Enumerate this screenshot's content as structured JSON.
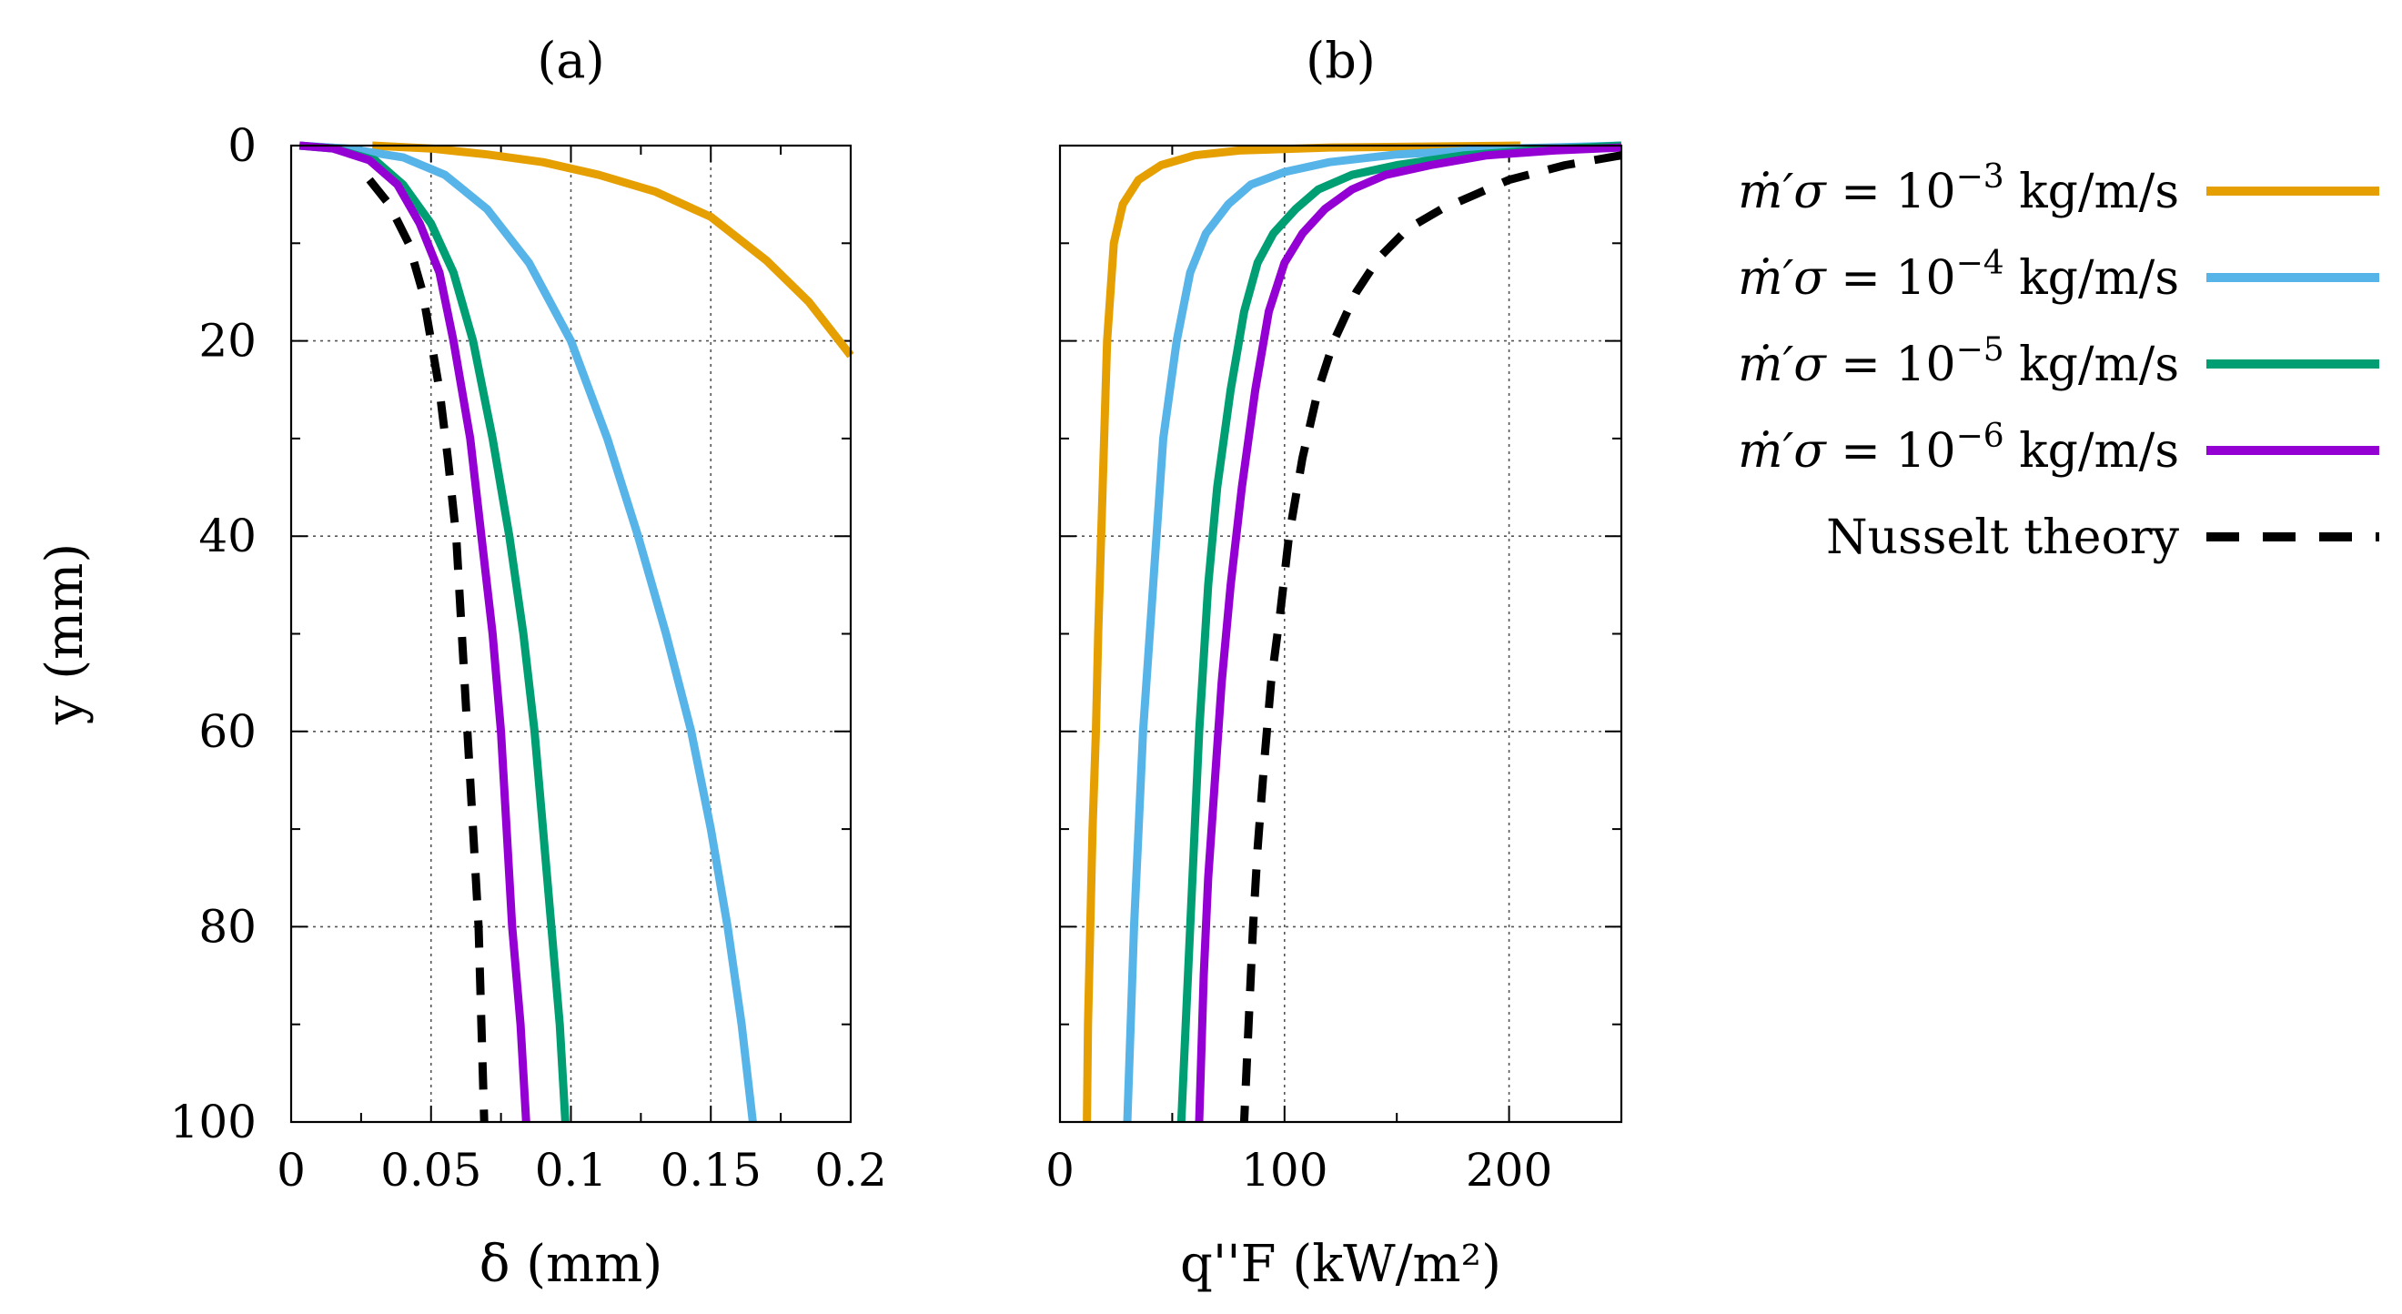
{
  "chart_data": [
    {
      "type": "line",
      "title": "(a)",
      "xlabel": "δ (mm)",
      "ylabel": "y (mm)",
      "xlim": [
        0,
        0.2
      ],
      "ylim": [
        0,
        100
      ],
      "y_inverted": true,
      "grid": true,
      "xticks": [
        0,
        0.05,
        0.1,
        0.15,
        0.2
      ],
      "xtick_labels": [
        "0",
        "0.05",
        "0.1",
        "0.15",
        "0.2"
      ],
      "yticks": [
        0,
        20,
        40,
        60,
        80,
        100
      ],
      "ytick_labels": [
        "0",
        "20",
        "40",
        "60",
        "80",
        "100"
      ],
      "series": [
        {
          "name": "m'σ = 10^-3 kg/m/s",
          "color": "#E69F00",
          "dash": "solid",
          "points": [
            [
              0.029,
              0.0
            ],
            [
              0.05,
              0.3
            ],
            [
              0.07,
              0.9
            ],
            [
              0.09,
              1.7
            ],
            [
              0.11,
              3.0
            ],
            [
              0.13,
              4.7
            ],
            [
              0.15,
              7.3
            ],
            [
              0.17,
              11.8
            ],
            [
              0.185,
              16.0
            ],
            [
              0.2,
              21.5
            ]
          ]
        },
        {
          "name": "m'σ = 10^-4 kg/m/s",
          "color": "#56B4E9",
          "dash": "solid",
          "points": [
            [
              0.003,
              0.0
            ],
            [
              0.02,
              0.3
            ],
            [
              0.04,
              1.2
            ],
            [
              0.055,
              3.0
            ],
            [
              0.07,
              6.5
            ],
            [
              0.085,
              12.0
            ],
            [
              0.1,
              20.0
            ],
            [
              0.113,
              30.0
            ],
            [
              0.124,
              40.0
            ],
            [
              0.134,
              50.0
            ],
            [
              0.143,
              60.0
            ],
            [
              0.15,
              70.0
            ],
            [
              0.156,
              80.0
            ],
            [
              0.161,
              90.0
            ],
            [
              0.165,
              100.0
            ]
          ]
        },
        {
          "name": "m'σ = 10^-5 kg/m/s",
          "color": "#009E73",
          "dash": "solid",
          "points": [
            [
              0.003,
              0.0
            ],
            [
              0.015,
              0.3
            ],
            [
              0.03,
              1.5
            ],
            [
              0.04,
              4.0
            ],
            [
              0.05,
              8.0
            ],
            [
              0.058,
              13.0
            ],
            [
              0.065,
              20.0
            ],
            [
              0.072,
              30.0
            ],
            [
              0.078,
              40.0
            ],
            [
              0.083,
              50.0
            ],
            [
              0.087,
              60.0
            ],
            [
              0.09,
              70.0
            ],
            [
              0.093,
              80.0
            ],
            [
              0.096,
              90.0
            ],
            [
              0.098,
              100.0
            ]
          ]
        },
        {
          "name": "m'σ = 10^-6 kg/m/s",
          "color": "#9400D3",
          "dash": "solid",
          "points": [
            [
              0.003,
              0.0
            ],
            [
              0.015,
              0.3
            ],
            [
              0.028,
              1.5
            ],
            [
              0.038,
              4.0
            ],
            [
              0.046,
              8.0
            ],
            [
              0.053,
              13.0
            ],
            [
              0.058,
              20.0
            ],
            [
              0.064,
              30.0
            ],
            [
              0.068,
              40.0
            ],
            [
              0.072,
              50.0
            ],
            [
              0.075,
              60.0
            ],
            [
              0.077,
              70.0
            ],
            [
              0.079,
              80.0
            ],
            [
              0.082,
              90.0
            ],
            [
              0.084,
              100.0
            ]
          ]
        },
        {
          "name": "Nusselt theory",
          "color": "#000000",
          "dash": "dashed",
          "points": [
            [
              0.028,
              3.5
            ],
            [
              0.035,
              6.0
            ],
            [
              0.042,
              10.0
            ],
            [
              0.047,
              15.0
            ],
            [
              0.05,
              20.0
            ],
            [
              0.053,
              25.0
            ],
            [
              0.056,
              32.0
            ],
            [
              0.059,
              40.0
            ],
            [
              0.061,
              50.0
            ],
            [
              0.063,
              60.0
            ],
            [
              0.065,
              70.0
            ],
            [
              0.067,
              80.0
            ],
            [
              0.068,
              90.0
            ],
            [
              0.069,
              100.0
            ]
          ]
        }
      ]
    },
    {
      "type": "line",
      "title": "(b)",
      "xlabel": "q''F (kW/m²)",
      "ylabel": "",
      "xlim": [
        0,
        250
      ],
      "ylim": [
        0,
        100
      ],
      "y_inverted": true,
      "grid": true,
      "xticks": [
        0,
        100,
        200
      ],
      "xtick_labels": [
        "0",
        "100",
        "200"
      ],
      "yticks": [
        0,
        20,
        40,
        60,
        80,
        100
      ],
      "ytick_labels": [],
      "series": [
        {
          "name": "m'σ = 10^-3 kg/m/s",
          "color": "#E69F00",
          "dash": "solid",
          "points": [
            [
              205,
              0.0
            ],
            [
              120,
              0.2
            ],
            [
              80,
              0.5
            ],
            [
              60,
              1.0
            ],
            [
              45,
              2.0
            ],
            [
              35,
              3.5
            ],
            [
              28,
              6.0
            ],
            [
              24,
              10.0
            ],
            [
              21,
              20.0
            ],
            [
              19,
              35.0
            ],
            [
              17,
              50.0
            ],
            [
              16,
              60.0
            ],
            [
              14.5,
              70.0
            ],
            [
              13.5,
              80.0
            ],
            [
              12.5,
              90.0
            ],
            [
              12,
              100.0
            ]
          ]
        },
        {
          "name": "m'σ = 10^-4 kg/m/s",
          "color": "#56B4E9",
          "dash": "solid",
          "points": [
            [
              250,
              0.0
            ],
            [
              200,
              0.3
            ],
            [
              150,
              0.9
            ],
            [
              120,
              1.7
            ],
            [
              100,
              2.7
            ],
            [
              85,
              4.0
            ],
            [
              75,
              6.0
            ],
            [
              65,
              9.0
            ],
            [
              58,
              13.0
            ],
            [
              52,
              20.0
            ],
            [
              46,
              30.0
            ],
            [
              43,
              40.0
            ],
            [
              40,
              50.0
            ],
            [
              37,
              60.0
            ],
            [
              35,
              70.0
            ],
            [
              33,
              80.0
            ],
            [
              31.5,
              90.0
            ],
            [
              30,
              100.0
            ]
          ]
        },
        {
          "name": "m'σ = 10^-5 kg/m/s",
          "color": "#009E73",
          "dash": "solid",
          "points": [
            [
              250,
              0.0
            ],
            [
              210,
              0.5
            ],
            [
              180,
              1.0
            ],
            [
              150,
              2.0
            ],
            [
              130,
              3.0
            ],
            [
              115,
              4.5
            ],
            [
              105,
              6.5
            ],
            [
              95,
              9.0
            ],
            [
              88,
              12.0
            ],
            [
              82,
              17.0
            ],
            [
              76,
              25.0
            ],
            [
              70,
              35.0
            ],
            [
              66,
              45.0
            ],
            [
              62,
              60.0
            ],
            [
              59,
              75.0
            ],
            [
              56,
              90.0
            ],
            [
              54,
              100.0
            ]
          ]
        },
        {
          "name": "m'σ = 10^-6 kg/m/s",
          "color": "#9400D3",
          "dash": "solid",
          "points": [
            [
              250,
              0.2
            ],
            [
              220,
              0.5
            ],
            [
              190,
              1.0
            ],
            [
              165,
              2.0
            ],
            [
              145,
              3.0
            ],
            [
              130,
              4.5
            ],
            [
              118,
              6.5
            ],
            [
              108,
              9.0
            ],
            [
              100,
              12.0
            ],
            [
              93,
              17.0
            ],
            [
              87,
              25.0
            ],
            [
              81,
              35.0
            ],
            [
              76,
              45.0
            ],
            [
              72,
              55.0
            ],
            [
              69,
              65.0
            ],
            [
              66,
              75.0
            ],
            [
              64,
              85.0
            ],
            [
              62,
              100.0
            ]
          ]
        },
        {
          "name": "Nusselt theory",
          "color": "#000000",
          "dash": "dashed",
          "points": [
            [
              250,
              1.0
            ],
            [
              225,
              2.0
            ],
            [
              200,
              3.5
            ],
            [
              185,
              5.0
            ],
            [
              170,
              6.5
            ],
            [
              155,
              8.5
            ],
            [
              142,
              11.5
            ],
            [
              132,
              15.0
            ],
            [
              122,
              20.0
            ],
            [
              115,
              25.0
            ],
            [
              108,
              32.0
            ],
            [
              102,
              40.0
            ],
            [
              98,
              48.0
            ],
            [
              94,
              55.0
            ],
            [
              91,
              63.0
            ],
            [
              88,
              72.0
            ],
            [
              86,
              80.0
            ],
            [
              84,
              90.0
            ],
            [
              82,
              100.0
            ]
          ]
        }
      ]
    }
  ],
  "legend": [
    {
      "text": "= 10^-3 kg/m/s",
      "exp": "−3",
      "color": "#E69F00",
      "dash": "solid"
    },
    {
      "text": "= 10^-4 kg/m/s",
      "exp": "−4",
      "color": "#56B4E9",
      "dash": "solid"
    },
    {
      "text": "= 10^-5 kg/m/s",
      "exp": "−5",
      "color": "#009E73",
      "dash": "solid"
    },
    {
      "text": "= 10^-6 kg/m/s",
      "exp": "−6",
      "color": "#9400D3",
      "dash": "solid"
    },
    {
      "text": "Nusselt theory",
      "exp": "",
      "color": "#000000",
      "dash": "dashed"
    }
  ],
  "legend_symbol": "ṁ′σ",
  "legend_unit": "kg/m/s",
  "legend_base": "= 10"
}
